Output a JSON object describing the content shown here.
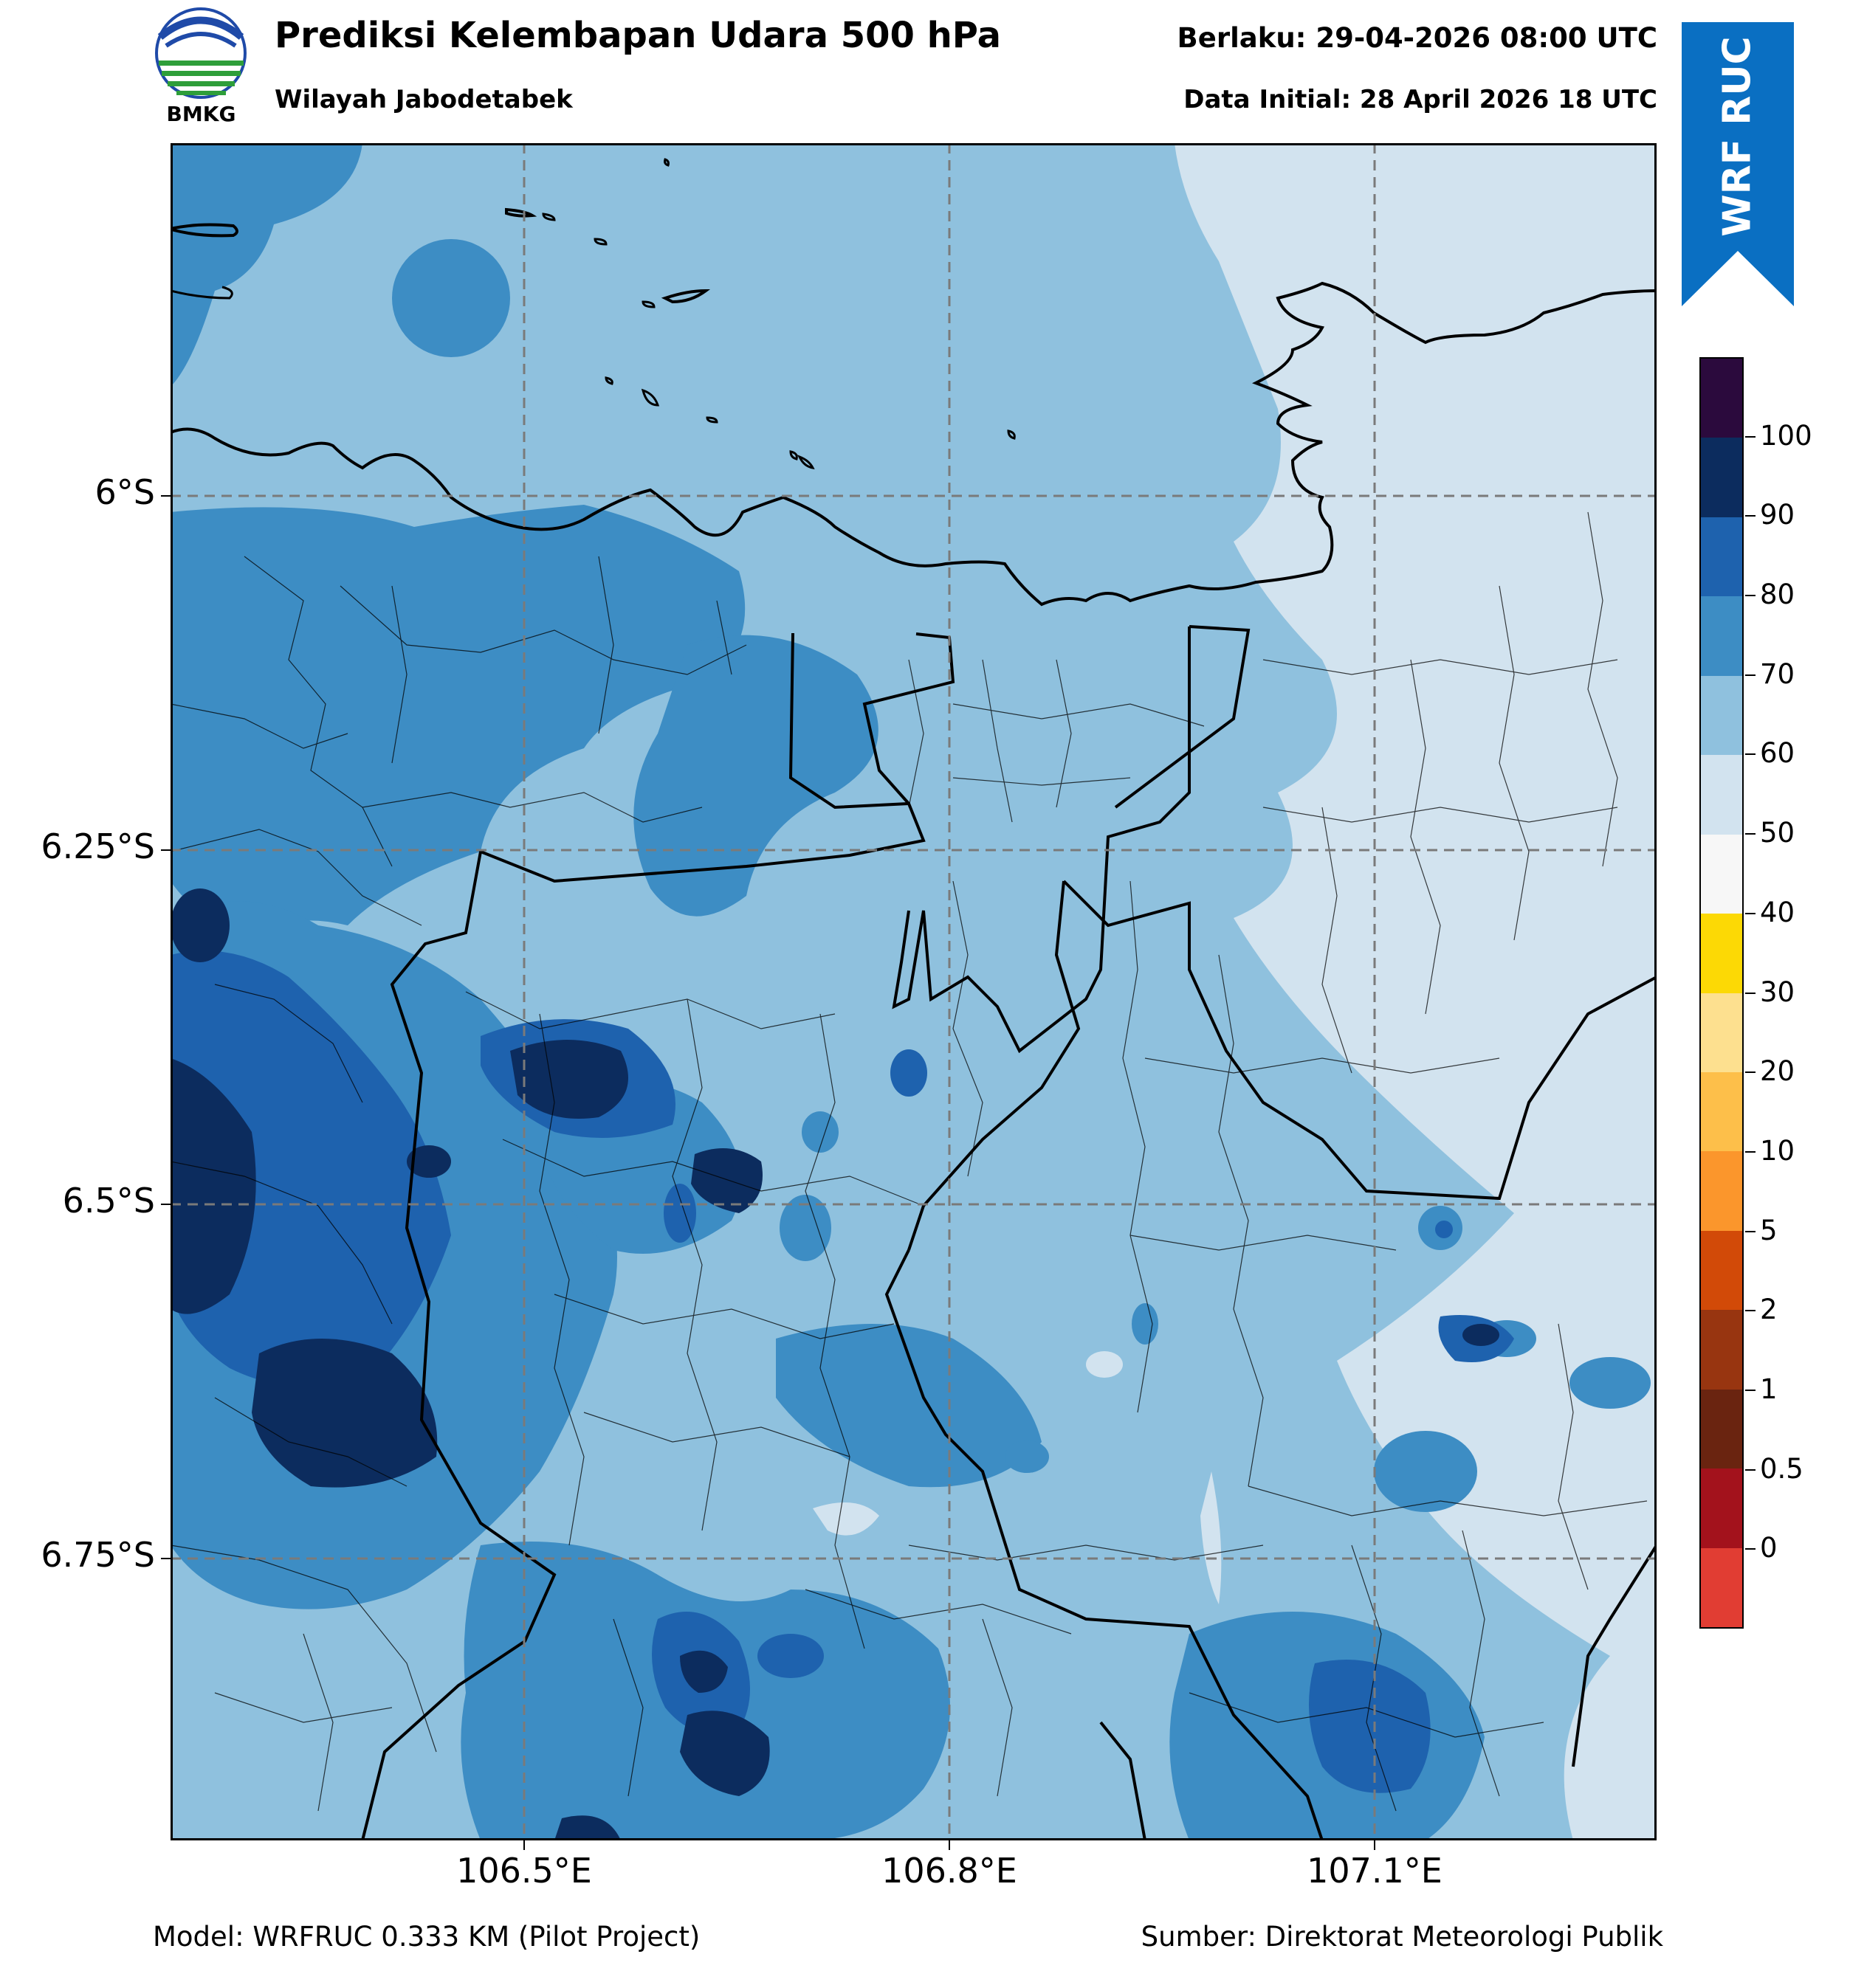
{
  "header": {
    "title": "Prediksi Kelembapan Udara 500 hPa",
    "subtitle": "Wilayah Jabodetabek",
    "valid_time": "Berlaku: 29-04-2026 08:00 UTC",
    "init_time": "Data Initial: 28 April 2026 18 UTC"
  },
  "logo": {
    "text": "BMKG",
    "icon": "bmkg-logo-icon",
    "colors": [
      "#1f4aa8",
      "#2e9e3a"
    ]
  },
  "badge": {
    "text": "WRF RUC",
    "color": "#0a6fc2"
  },
  "map": {
    "lat_ticks": [
      "6°S",
      "6.25°S",
      "6.5°S",
      "6.75°S"
    ],
    "lon_ticks": [
      "106.5°E",
      "106.8°E",
      "107.1°E"
    ],
    "grid": true
  },
  "colorbar": {
    "labels": [
      "100",
      "90",
      "80",
      "70",
      "60",
      "50",
      "40",
      "30",
      "20",
      "10",
      "5",
      "2",
      "1",
      "0.5",
      "0"
    ],
    "colors": [
      "#2b0a3d",
      "#0c2c5e",
      "#1e62ae",
      "#3d8dc4",
      "#8fc1de",
      "#d2e3ef",
      "#f7f7f7",
      "#fcd905",
      "#fde08f",
      "#fdbf4a",
      "#fb962c",
      "#d24a08",
      "#983510",
      "#6a2410",
      "#a3121c",
      "#e13d33"
    ]
  },
  "footer": {
    "model": "Model: WRFRUC 0.333 KM (Pilot Project)",
    "source": "Sumber: Direktorat Meteorologi Publik"
  }
}
